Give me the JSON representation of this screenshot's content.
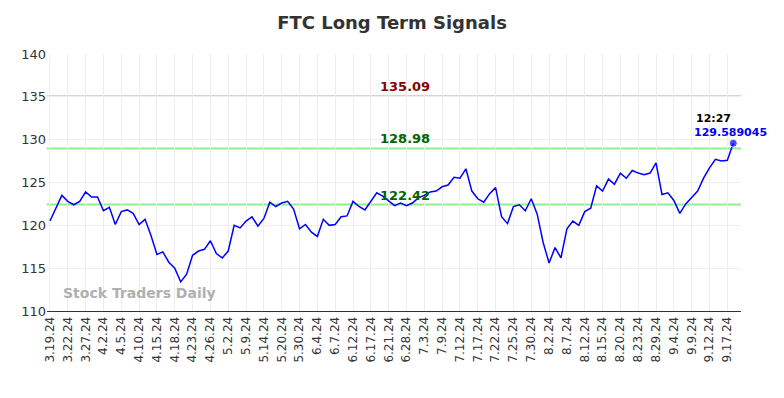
{
  "chart_data": {
    "type": "line",
    "title": "FTC Long Term Signals",
    "categories": [
      "3.19.24",
      null,
      null,
      "3.22.24",
      null,
      null,
      "3.27.24",
      null,
      null,
      "4.2.24",
      null,
      null,
      "4.5.24",
      null,
      null,
      "4.10.24",
      null,
      null,
      "4.15.24",
      null,
      null,
      "4.18.24",
      null,
      null,
      "4.23.24",
      null,
      null,
      "4.26.24",
      null,
      null,
      "5.2.24",
      null,
      null,
      "5.9.24",
      null,
      null,
      "5.14.24",
      null,
      null,
      "5.20.24",
      null,
      null,
      "5.30.24",
      null,
      null,
      "6.4.24",
      null,
      null,
      "6.7.24",
      null,
      null,
      "6.12.24",
      null,
      null,
      "6.17.24",
      null,
      null,
      "6.21.24",
      null,
      null,
      "6.28.24",
      null,
      null,
      "7.3.24",
      null,
      null,
      "7.9.24",
      null,
      null,
      "7.12.24",
      null,
      null,
      "7.17.24",
      null,
      null,
      "7.22.24",
      null,
      null,
      "7.25.24",
      null,
      null,
      "7.30.24",
      null,
      null,
      "8.2.24",
      null,
      null,
      "8.7.24",
      null,
      null,
      "8.12.24",
      null,
      null,
      "8.15.24",
      null,
      null,
      "8.20.24",
      null,
      null,
      "8.23.24",
      null,
      null,
      "8.29.24",
      null,
      null,
      "9.4.24",
      null,
      null,
      "9.9.24",
      null,
      null,
      "9.12.24",
      null,
      null,
      "9.17.24",
      null
    ],
    "values": [
      120.5,
      122.0,
      123.5,
      122.8,
      122.4,
      122.8,
      123.9,
      123.3,
      123.3,
      121.7,
      122.1,
      120.1,
      121.6,
      121.8,
      121.4,
      120.1,
      120.7,
      118.8,
      116.6,
      116.9,
      115.7,
      115.0,
      113.4,
      114.3,
      116.5,
      117.0,
      117.2,
      118.2,
      116.7,
      116.2,
      117.0,
      120.0,
      119.7,
      120.5,
      121.0,
      119.9,
      120.8,
      122.7,
      122.2,
      122.6,
      122.8,
      121.9,
      119.6,
      120.1,
      119.2,
      118.7,
      120.7,
      120.0,
      120.1,
      121.0,
      121.1,
      122.8,
      122.2,
      121.8,
      122.8,
      123.8,
      123.4,
      122.9,
      122.3,
      122.6,
      122.3,
      122.6,
      123.2,
      123.5,
      123.9,
      124.0,
      124.5,
      124.7,
      125.6,
      125.5,
      126.6,
      124.0,
      123.1,
      122.7,
      123.7,
      124.4,
      121.0,
      120.2,
      122.2,
      122.4,
      121.7,
      123.1,
      121.3,
      118.0,
      115.6,
      117.4,
      116.2,
      119.6,
      120.5,
      120.0,
      121.6,
      122.0,
      124.6,
      124.0,
      125.4,
      124.8,
      126.1,
      125.5,
      126.4,
      126.1,
      125.9,
      126.1,
      127.3,
      123.6,
      123.8,
      122.9,
      121.4,
      122.5,
      123.3,
      124.0,
      125.5,
      126.7,
      127.7,
      127.5,
      127.6,
      129.589045
    ],
    "color": "#0000ff",
    "marker": "last",
    "ylim": [
      110,
      140
    ],
    "yticks": [
      110,
      115,
      120,
      125,
      130,
      135,
      140
    ],
    "grid": true,
    "reference_lines": [
      {
        "value": 135.09,
        "label": "135.09",
        "color": "#f4c7c7",
        "text_color": "#8b0000"
      },
      {
        "value": 128.98,
        "label": "128.98",
        "color": "#90ee90",
        "text_color": "#006400"
      },
      {
        "value": 122.42,
        "label": "122.42",
        "color": "#90ee90",
        "text_color": "#006400"
      }
    ],
    "last_label": {
      "time": "12:27",
      "text": "129.589045"
    },
    "watermark": "Stock Traders Daily"
  }
}
